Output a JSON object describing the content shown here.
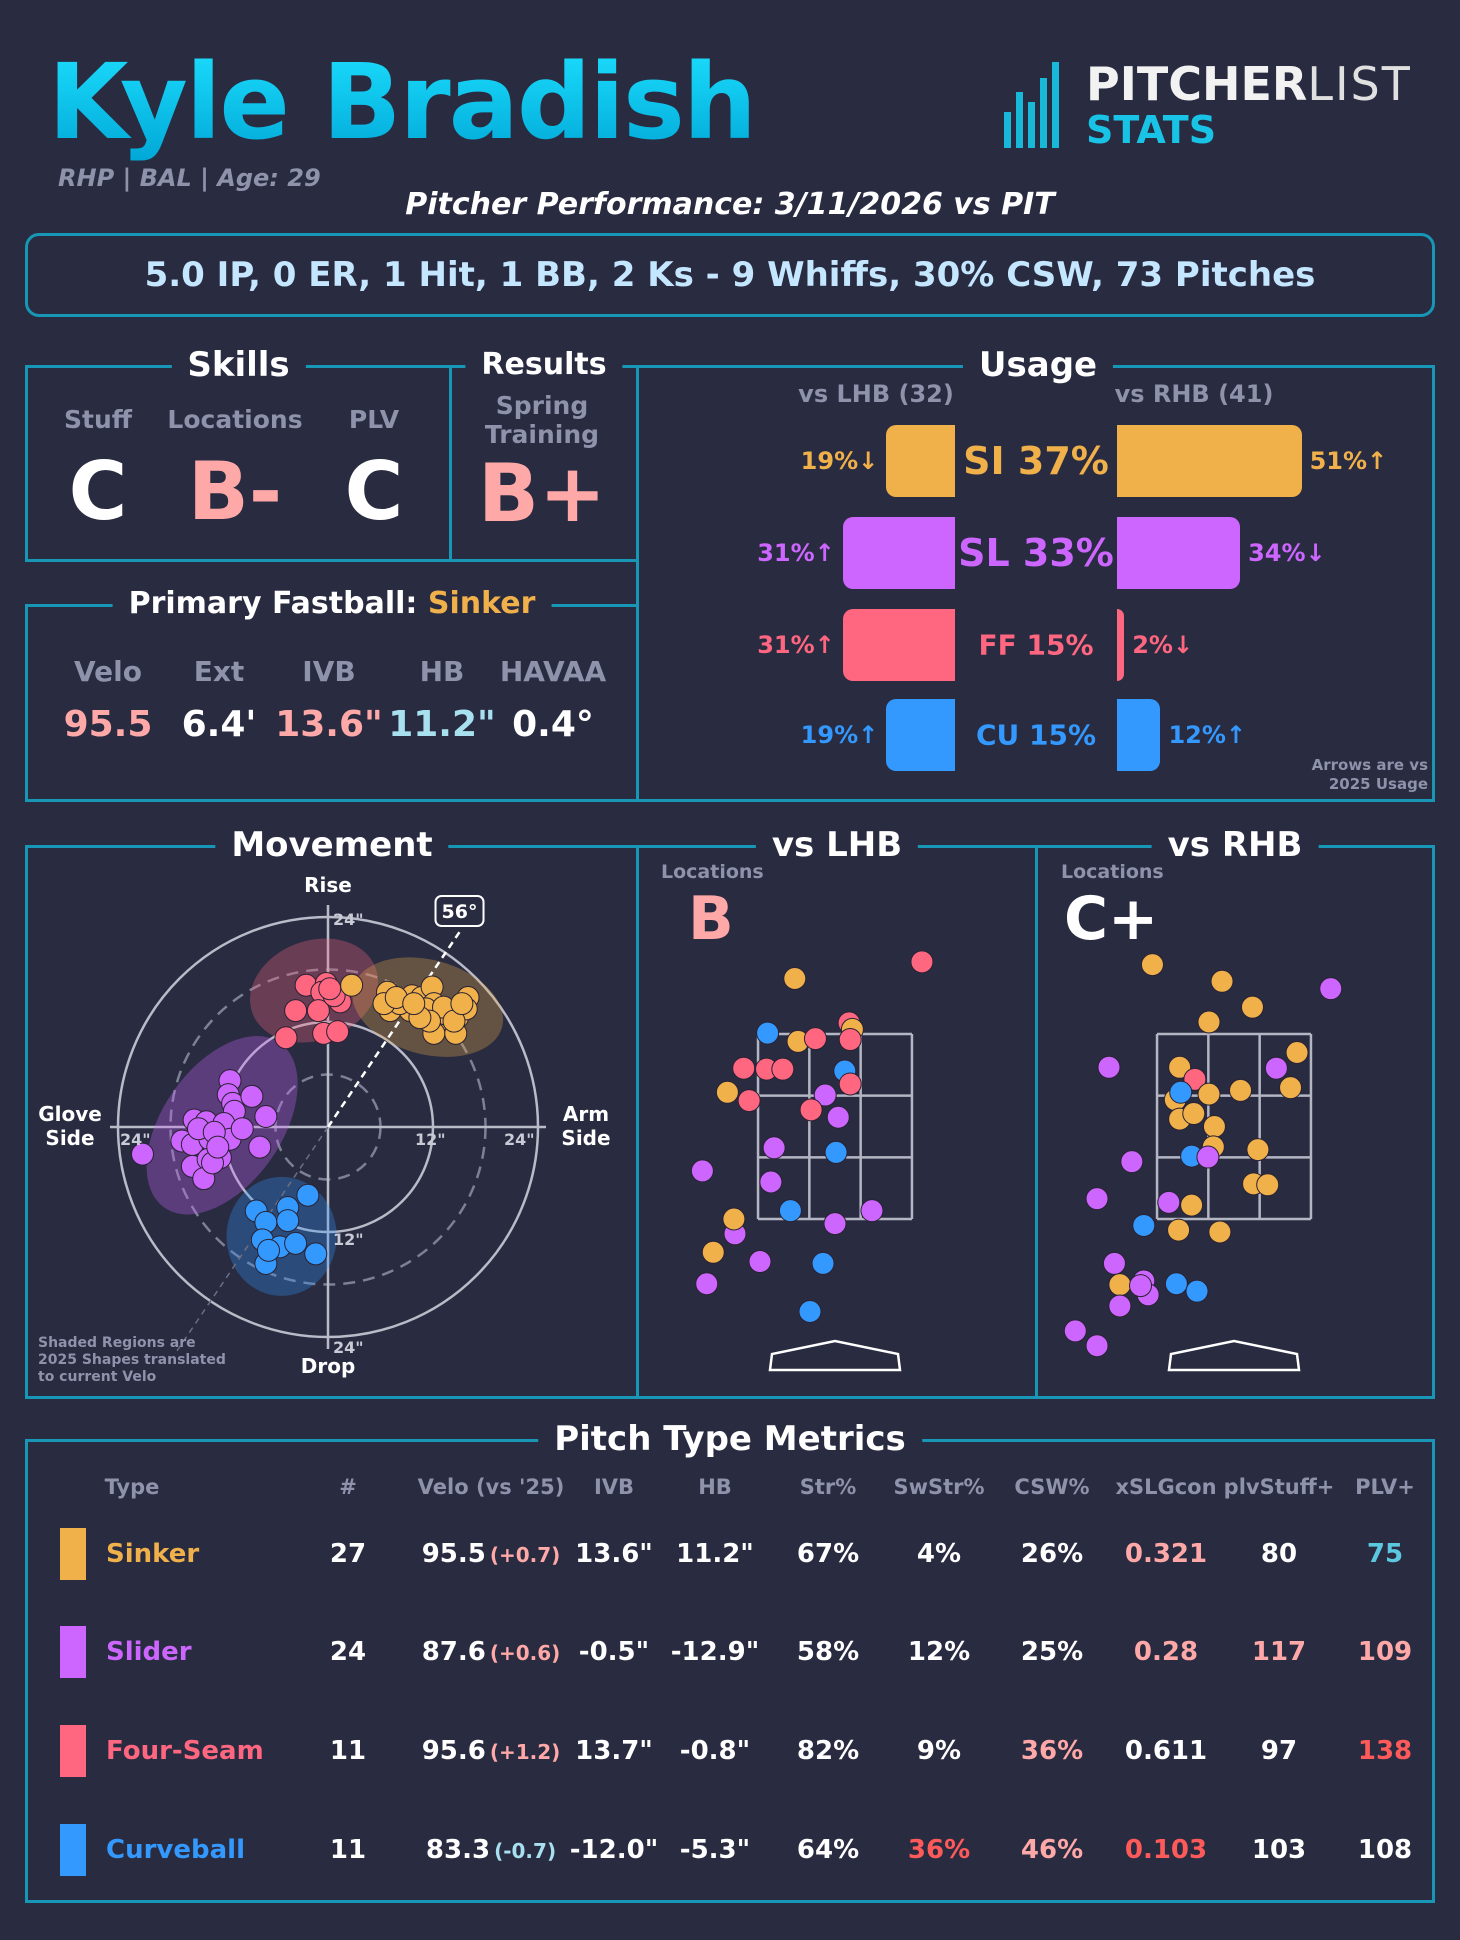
{
  "header": {
    "name": "Kyle Bradish",
    "subtitle": "RHP | BAL | Age: 29",
    "performance_title": "Pitcher Performance: 3/11/2026 vs PIT",
    "summary": "5.0 IP, 0 ER, 1 Hit, 1 BB, 2 Ks - 9 Whiffs, 30% CSW, 73 Pitches",
    "logo": {
      "word1": "PITCHER",
      "word2": "LIST",
      "word3": "STATS"
    }
  },
  "colors": {
    "SI": "#f0b04a",
    "SL": "#cc66ff",
    "FF": "#ff6680",
    "CU": "#3399ff",
    "accent": "#1797b5",
    "pink": "#ffa8a8",
    "red": "#ff5a5a",
    "teal": "#5cc8e0",
    "lightblue": "#a8e0f0"
  },
  "skills": {
    "title": "Skills",
    "items": [
      {
        "label": "Stuff",
        "grade": "C",
        "color": "#ffffff"
      },
      {
        "label": "Locations",
        "grade": "B-",
        "color": "#ffa8a8"
      },
      {
        "label": "PLV",
        "grade": "C",
        "color": "#ffffff"
      }
    ]
  },
  "results": {
    "title": "Results",
    "label": "Spring Training",
    "grade": "B+",
    "color": "#ffa8a8"
  },
  "primary_fastball": {
    "title": "Primary Fastball:",
    "pitch": "Sinker",
    "metrics": [
      {
        "label": "Velo",
        "value": "95.5",
        "color": "#ffa8a8"
      },
      {
        "label": "Ext",
        "value": "6.4'",
        "color": "#ffffff"
      },
      {
        "label": "IVB",
        "value": "13.6\"",
        "color": "#ffa8a8"
      },
      {
        "label": "HB",
        "value": "11.2\"",
        "color": "#a8e0f0"
      },
      {
        "label": "HAVAA",
        "value": "0.4°",
        "color": "#ffffff"
      }
    ]
  },
  "usage": {
    "title": "Usage",
    "lhb_header": "vs LHB (32)",
    "rhb_header": "vs RHB (41)",
    "note_line1": "Arrows are vs",
    "note_line2": "2025 Usage",
    "rows": [
      {
        "pitch": "SI",
        "label": "SI 37%",
        "lhb": 19,
        "lhb_text": "19%↓",
        "rhb": 51,
        "rhb_text": "51%↑"
      },
      {
        "pitch": "SL",
        "label": "SL 33%",
        "lhb": 31,
        "lhb_text": "31%↑",
        "rhb": 34,
        "rhb_text": "34%↓"
      },
      {
        "pitch": "FF",
        "label": "FF 15%",
        "lhb": 31,
        "lhb_text": "31%↑",
        "rhb": 2,
        "rhb_text": "2%↓"
      },
      {
        "pitch": "CU",
        "label": "CU 15%",
        "lhb": 19,
        "lhb_text": "19%↑",
        "rhb": 12,
        "rhb_text": "12%↑"
      }
    ]
  },
  "movement": {
    "title": "Movement",
    "top_label": "Rise",
    "bottom_label": "Drop",
    "left_label_1": "Glove",
    "left_label_2": "Side",
    "right_label_1": "Arm",
    "right_label_2": "Side",
    "tick_12": "12\"",
    "tick_24": "24\"",
    "arm_angle": "56°",
    "arm_angle_deg": 56,
    "note_1": "Shaded Regions are",
    "note_2": "2025 Shapes translated",
    "note_3": "to current Velo",
    "max_inches": 24,
    "shapes_2025": [
      {
        "pitch": "FF",
        "hb": -1.6,
        "ivb": 15.6,
        "rx": 7.5,
        "ry": 5.7,
        "rot": -20
      },
      {
        "pitch": "SI",
        "hb": 11.4,
        "ivb": 13.7,
        "rx": 8.8,
        "ry": 5.4,
        "rot": 15
      },
      {
        "pitch": "SL",
        "hb": -12.1,
        "ivb": 0.2,
        "rx": 6.8,
        "ry": 11.5,
        "rot": 35
      },
      {
        "pitch": "CU",
        "hb": -5.3,
        "ivb": -12.5,
        "rx": 6.3,
        "ry": 6.8,
        "rot": 0
      }
    ],
    "points": {
      "FF": [
        [
          -2.5,
          16.2
        ],
        [
          -0.2,
          16.4
        ],
        [
          -0.7,
          15.4
        ],
        [
          1.4,
          14.3
        ],
        [
          -3.7,
          13.3
        ],
        [
          -1.1,
          13.3
        ],
        [
          0.7,
          15.0
        ],
        [
          -4.8,
          10.2
        ],
        [
          -0.5,
          10.7
        ],
        [
          1.1,
          10.9
        ],
        [
          0.2,
          15.8
        ]
      ],
      "SI": [
        [
          2.7,
          16.2
        ],
        [
          6.8,
          15.4
        ],
        [
          7.1,
          13.3
        ],
        [
          8.4,
          14.3
        ],
        [
          9.6,
          15.0
        ],
        [
          10.7,
          14.8
        ],
        [
          11.9,
          16.0
        ],
        [
          12.1,
          14.1
        ],
        [
          10.7,
          12.9
        ],
        [
          12.6,
          12.1
        ],
        [
          13.5,
          12.9
        ],
        [
          14.8,
          12.5
        ],
        [
          16.0,
          14.8
        ],
        [
          15.8,
          13.5
        ],
        [
          12.1,
          10.7
        ],
        [
          14.6,
          10.7
        ],
        [
          11.2,
          13.5
        ],
        [
          9.4,
          13.3
        ],
        [
          8.2,
          14.1
        ],
        [
          13.2,
          13.7
        ],
        [
          14.4,
          12.1
        ],
        [
          11.6,
          12.1
        ],
        [
          10.5,
          12.5
        ],
        [
          6.4,
          14.1
        ],
        [
          7.8,
          14.8
        ],
        [
          15.3,
          14.1
        ],
        [
          9.8,
          14.1
        ]
      ],
      "SL": [
        [
          -11.2,
          5.3
        ],
        [
          -11.4,
          3.7
        ],
        [
          -10.9,
          2.7
        ],
        [
          -10.7,
          1.8
        ],
        [
          -8.7,
          3.5
        ],
        [
          -7.1,
          1.2
        ],
        [
          -15.3,
          0.8
        ],
        [
          -13.9,
          0.6
        ],
        [
          -11.9,
          0.4
        ],
        [
          -16.7,
          -1.6
        ],
        [
          -15.5,
          -2.0
        ],
        [
          -13.5,
          -1.4
        ],
        [
          -11.2,
          -1.4
        ],
        [
          -7.8,
          -2.3
        ],
        [
          -21.2,
          -3.1
        ],
        [
          -15.5,
          -4.5
        ],
        [
          -13.7,
          -3.7
        ],
        [
          -12.3,
          -3.5
        ],
        [
          -14.2,
          -5.9
        ],
        [
          -13.2,
          -4.1
        ],
        [
          -14.8,
          -0.2
        ],
        [
          -13.0,
          -0.6
        ],
        [
          -9.8,
          -0.2
        ],
        [
          -12.6,
          -2.3
        ]
      ],
      "CU": [
        [
          -2.3,
          -7.8
        ],
        [
          -8.2,
          -9.6
        ],
        [
          -4.6,
          -9.2
        ],
        [
          -7.1,
          -10.9
        ],
        [
          -4.6,
          -10.7
        ],
        [
          -7.5,
          -12.9
        ],
        [
          -5.5,
          -13.7
        ],
        [
          -3.7,
          -13.3
        ],
        [
          -1.4,
          -14.5
        ],
        [
          -7.1,
          -15.6
        ],
        [
          -6.8,
          -14.1
        ]
      ]
    }
  },
  "locations": {
    "lhb": {
      "title": "vs LHB",
      "label": "Locations",
      "grade": "B",
      "grade_color": "#ffa8a8",
      "pitches": [
        [
          "FF",
          0.8,
          4.28
        ],
        [
          "SI",
          -0.37,
          4.1
        ],
        [
          "CU",
          -0.62,
          3.51
        ],
        [
          "FF",
          0.13,
          3.62
        ],
        [
          "SI",
          0.16,
          3.55
        ],
        [
          "SI",
          -0.34,
          3.42
        ],
        [
          "FF",
          -0.18,
          3.45
        ],
        [
          "FF",
          0.14,
          3.44
        ],
        [
          "FF",
          -0.84,
          3.13
        ],
        [
          "FF",
          -0.63,
          3.12
        ],
        [
          "FF",
          -0.48,
          3.12
        ],
        [
          "CU",
          0.09,
          3.1
        ],
        [
          "FF",
          0.14,
          2.96
        ],
        [
          "SI",
          -0.99,
          2.87
        ],
        [
          "FF",
          -0.79,
          2.78
        ],
        [
          "SL",
          -0.09,
          2.84
        ],
        [
          "FF",
          -0.22,
          2.68
        ],
        [
          "SL",
          0.03,
          2.6
        ],
        [
          "SL",
          -0.56,
          2.27
        ],
        [
          "CU",
          0.01,
          2.22
        ],
        [
          "SL",
          -1.22,
          2.02
        ],
        [
          "SL",
          -0.59,
          1.9
        ],
        [
          "CU",
          -0.41,
          1.59
        ],
        [
          "SL",
          0.34,
          1.59
        ],
        [
          "SL",
          0.0,
          1.45
        ],
        [
          "SL",
          -0.92,
          1.34
        ],
        [
          "SI",
          -0.93,
          1.5
        ],
        [
          "SI",
          -1.12,
          1.14
        ],
        [
          "SL",
          -0.69,
          1.04
        ],
        [
          "CU",
          -0.11,
          1.02
        ],
        [
          "SL",
          -1.18,
          0.8
        ],
        [
          "CU",
          -0.23,
          0.5
        ]
      ]
    },
    "rhb": {
      "title": "vs RHB",
      "label": "Locations",
      "grade": "C+",
      "grade_color": "#ffffff",
      "pitches": [
        [
          "SI",
          -0.75,
          4.25
        ],
        [
          "SI",
          -0.11,
          4.07
        ],
        [
          "SL",
          0.89,
          3.99
        ],
        [
          "SI",
          0.17,
          3.79
        ],
        [
          "SI",
          -0.23,
          3.63
        ],
        [
          "SI",
          0.58,
          3.3
        ],
        [
          "SL",
          -1.15,
          3.14
        ],
        [
          "SI",
          -0.5,
          3.14
        ],
        [
          "SL",
          0.39,
          3.13
        ],
        [
          "FF",
          -0.36,
          3.01
        ],
        [
          "SI",
          0.52,
          2.92
        ],
        [
          "SI",
          0.06,
          2.89
        ],
        [
          "SI",
          -0.23,
          2.85
        ],
        [
          "SI",
          -0.54,
          2.79
        ],
        [
          "CU",
          -0.49,
          2.87
        ],
        [
          "SI",
          -0.5,
          2.58
        ],
        [
          "SI",
          -0.37,
          2.64
        ],
        [
          "SI",
          -0.18,
          2.5
        ],
        [
          "SI",
          -0.19,
          2.28
        ],
        [
          "SI",
          0.22,
          2.25
        ],
        [
          "CU",
          -0.39,
          2.18
        ],
        [
          "SL",
          -0.24,
          2.17
        ],
        [
          "SL",
          -0.94,
          2.12
        ],
        [
          "SI",
          0.18,
          1.88
        ],
        [
          "SI",
          0.31,
          1.87
        ],
        [
          "SL",
          -1.26,
          1.72
        ],
        [
          "SL",
          -0.6,
          1.68
        ],
        [
          "SI",
          -0.39,
          1.65
        ],
        [
          "CU",
          -0.83,
          1.43
        ],
        [
          "SI",
          -0.51,
          1.38
        ],
        [
          "SI",
          -0.13,
          1.36
        ],
        [
          "SL",
          -1.1,
          1.02
        ],
        [
          "SI",
          -1.05,
          0.79
        ],
        [
          "SL",
          -0.83,
          0.83
        ],
        [
          "SL",
          -0.79,
          0.68
        ],
        [
          "SL",
          -0.86,
          0.78
        ],
        [
          "CU",
          -0.53,
          0.8
        ],
        [
          "CU",
          -0.34,
          0.72
        ],
        [
          "SL",
          -1.05,
          0.56
        ],
        [
          "SL",
          -1.46,
          0.29
        ],
        [
          "SL",
          -1.26,
          0.13
        ]
      ]
    }
  },
  "metrics_table": {
    "title": "Pitch Type Metrics",
    "columns": [
      "Type",
      "#",
      "Velo (vs '25)",
      "IVB",
      "HB",
      "Str%",
      "SwStr%",
      "CSW%",
      "xSLGcon",
      "plvStuff+",
      "PLV+"
    ],
    "rows": [
      {
        "pitch": "SI",
        "type": "Sinker",
        "count": "27",
        "velo": "95.5",
        "velo_diff": "(+0.7)",
        "velo_diff_color": "#ffa8a8",
        "ivb": "13.6\"",
        "hb": "11.2\"",
        "str": {
          "v": "67%",
          "c": "#ffffff"
        },
        "swstr": {
          "v": "4%",
          "c": "#ffffff"
        },
        "csw": {
          "v": "26%",
          "c": "#ffffff"
        },
        "xslg": {
          "v": "0.321",
          "c": "#ffa8a8"
        },
        "stuff": {
          "v": "80",
          "c": "#ffffff"
        },
        "plv": {
          "v": "75",
          "c": "#5cc8e0"
        }
      },
      {
        "pitch": "SL",
        "type": "Slider",
        "count": "24",
        "velo": "87.6",
        "velo_diff": "(+0.6)",
        "velo_diff_color": "#ffa8a8",
        "ivb": "-0.5\"",
        "hb": "-12.9\"",
        "str": {
          "v": "58%",
          "c": "#ffffff"
        },
        "swstr": {
          "v": "12%",
          "c": "#ffffff"
        },
        "csw": {
          "v": "25%",
          "c": "#ffffff"
        },
        "xslg": {
          "v": "0.28",
          "c": "#ffa8a8"
        },
        "stuff": {
          "v": "117",
          "c": "#ffa8a8"
        },
        "plv": {
          "v": "109",
          "c": "#ffa8a8"
        }
      },
      {
        "pitch": "FF",
        "type": "Four-Seam",
        "count": "11",
        "velo": "95.6",
        "velo_diff": "(+1.2)",
        "velo_diff_color": "#ffa8a8",
        "ivb": "13.7\"",
        "hb": "-0.8\"",
        "str": {
          "v": "82%",
          "c": "#ffffff"
        },
        "swstr": {
          "v": "9%",
          "c": "#ffffff"
        },
        "csw": {
          "v": "36%",
          "c": "#ffa8a8"
        },
        "xslg": {
          "v": "0.611",
          "c": "#ffffff"
        },
        "stuff": {
          "v": "97",
          "c": "#ffffff"
        },
        "plv": {
          "v": "138",
          "c": "#ff5a5a"
        }
      },
      {
        "pitch": "CU",
        "type": "Curveball",
        "count": "11",
        "velo": "83.3",
        "velo_diff": "(-0.7)",
        "velo_diff_color": "#a8e0f0",
        "ivb": "-12.0\"",
        "hb": "-5.3\"",
        "str": {
          "v": "64%",
          "c": "#ffffff"
        },
        "swstr": {
          "v": "36%",
          "c": "#ff5a5a"
        },
        "csw": {
          "v": "46%",
          "c": "#ffa8a8"
        },
        "xslg": {
          "v": "0.103",
          "c": "#ff5a5a"
        },
        "stuff": {
          "v": "103",
          "c": "#ffffff"
        },
        "plv": {
          "v": "108",
          "c": "#ffffff"
        }
      }
    ]
  }
}
